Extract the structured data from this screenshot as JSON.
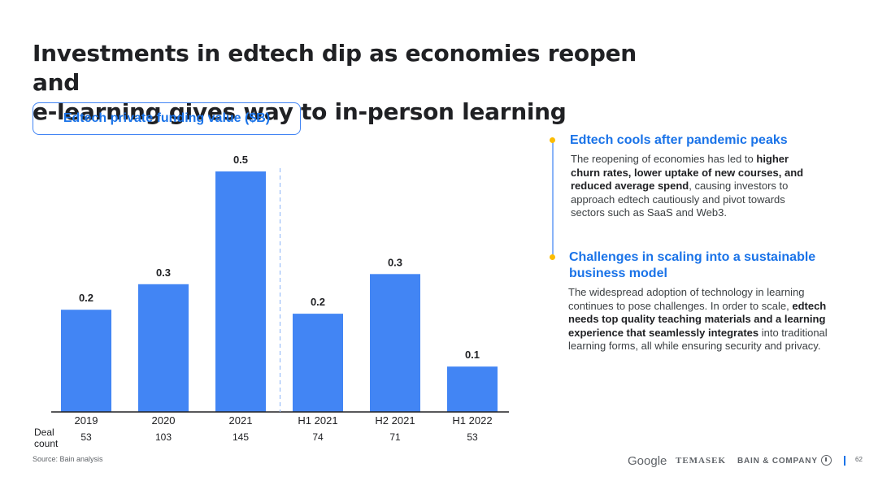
{
  "slide": {
    "title_line1": "Investments in edtech dip as economies reopen and",
    "title_line2": "e-learning gives way to in-person learning",
    "source": "Source: Bain analysis",
    "page_number": "62"
  },
  "chart_data": {
    "type": "bar",
    "title": "Edtech private funding value ($B)",
    "categories": [
      "2019",
      "2020",
      "2021",
      "H1 2021",
      "H2 2021",
      "H1 2022"
    ],
    "values": [
      0.2,
      0.3,
      0.5,
      0.2,
      0.3,
      0.1
    ],
    "bar_heights": [
      0.232,
      0.29,
      0.546,
      0.223,
      0.313,
      0.103
    ],
    "value_labels": [
      "0.2",
      "0.3",
      "0.5",
      "0.2",
      "0.3",
      "0.1"
    ],
    "deal_count_label_line1": "Deal",
    "deal_count_label_line2": "count",
    "deal_counts": [
      "53",
      "103",
      "145",
      "74",
      "71",
      "53"
    ],
    "bar_color": "#4285f4",
    "divider_after_index": 2,
    "ylim": [
      0,
      0.55
    ]
  },
  "sections": [
    {
      "heading": "Edtech cools after pandemic peaks",
      "body": [
        {
          "t": "The reopening of economies has led to "
        },
        {
          "t": "higher churn rates, lower uptake of new courses, and reduced average spend",
          "b": true
        },
        {
          "t": ", causing investors to approach edtech cautiously and pivot towards sectors such as SaaS and Web3."
        }
      ]
    },
    {
      "heading": "Challenges in scaling into a sustainable business model",
      "body": [
        {
          "t": "The widespread adoption of technology in learning continues to pose challenges. In order to scale, "
        },
        {
          "t": "edtech needs top quality teaching materials and a learning experience that seamlessly integrates",
          "b": true
        },
        {
          "t": " into traditional learning forms, all while ensuring security and privacy."
        }
      ]
    }
  ],
  "footer": {
    "google": "Google",
    "temasek": "TEMASEK",
    "bain": "BAIN & COMPANY"
  },
  "colors": {
    "accent": "#1a73e8",
    "bar": "#4285f4",
    "timeline_dot": "#fbbc04",
    "timeline_line": "#8ab4f8"
  }
}
